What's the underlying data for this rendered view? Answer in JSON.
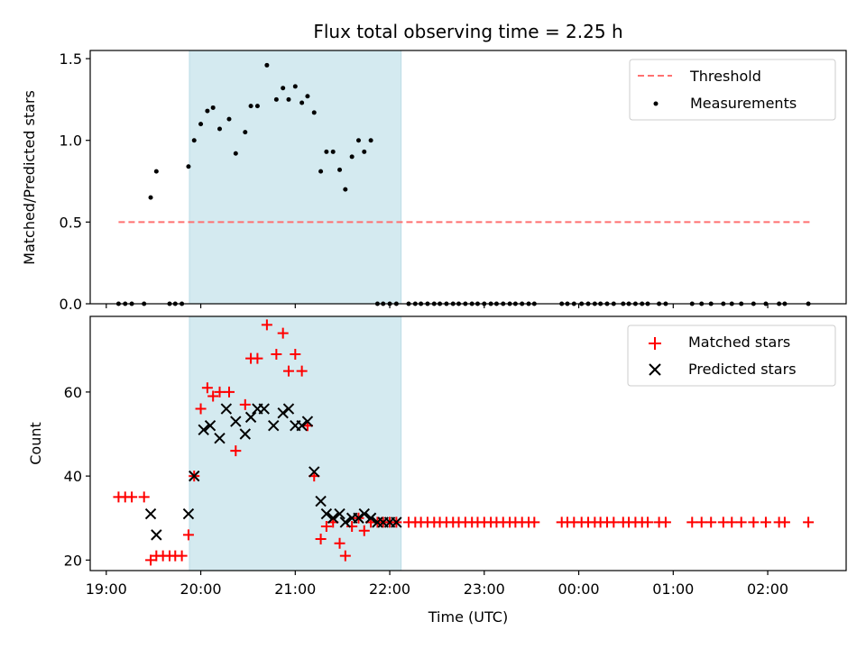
{
  "chart_data": {
    "title": "Flux total observing time = 2.25 h",
    "xlabel": "Time (UTC)",
    "x_unit": "hours UTC (values past 24 are after midnight)",
    "xlim": [
      18.83,
      26.83
    ],
    "xticks": [
      19,
      20,
      21,
      22,
      23,
      24,
      25,
      26
    ],
    "xtick_labels": [
      "19:00",
      "20:00",
      "21:00",
      "22:00",
      "23:00",
      "00:00",
      "01:00",
      "02:00"
    ],
    "highlight_span": [
      19.88,
      22.12
    ],
    "highlight_color": "#d4eaf0",
    "panels": [
      {
        "type": "scatter",
        "ylabel": "Matched/Predicted stars",
        "ylim": [
          0,
          1.55
        ],
        "yticks": [
          0.0,
          0.5,
          1.0,
          1.5
        ],
        "ytick_labels": [
          "0.0",
          "0.5",
          "1.0",
          "1.5"
        ],
        "legend": {
          "position": "upper right",
          "entries": [
            "Threshold",
            "Measurements"
          ]
        },
        "threshold": {
          "name": "Threshold",
          "y": 0.5,
          "x_range": [
            19.13,
            26.47
          ],
          "color": "#ff7070",
          "style": "dashed"
        },
        "measurements": {
          "name": "Measurements",
          "color": "#000000",
          "x": [
            19.13,
            19.2,
            19.27,
            19.4,
            19.47,
            19.53,
            19.67,
            19.73,
            19.8,
            19.87,
            19.93,
            20.0,
            20.07,
            20.13,
            20.2,
            20.3,
            20.37,
            20.47,
            20.53,
            20.6,
            20.7,
            20.8,
            20.87,
            20.93,
            21.0,
            21.07,
            21.13,
            21.2,
            21.27,
            21.33,
            21.4,
            21.47,
            21.53,
            21.6,
            21.67,
            21.73,
            21.8,
            21.87,
            21.93,
            22.0,
            22.07,
            22.2,
            22.27,
            22.33,
            22.4,
            22.47,
            22.53,
            22.6,
            22.67,
            22.73,
            22.8,
            22.87,
            22.93,
            23.0,
            23.07,
            23.13,
            23.2,
            23.27,
            23.33,
            23.4,
            23.47,
            23.53,
            23.82,
            23.88,
            23.95,
            24.03,
            24.1,
            24.17,
            24.23,
            24.3,
            24.37,
            24.47,
            24.53,
            24.6,
            24.67,
            24.73,
            24.85,
            24.92,
            25.2,
            25.3,
            25.4,
            25.53,
            25.62,
            25.72,
            25.85,
            25.98,
            26.12,
            26.18,
            26.43
          ],
          "y": [
            0,
            0,
            0,
            0,
            0.65,
            0.81,
            0,
            0,
            0,
            0.84,
            1.0,
            1.1,
            1.18,
            1.2,
            1.07,
            1.13,
            0.92,
            1.05,
            1.21,
            1.21,
            1.46,
            1.25,
            1.32,
            1.25,
            1.33,
            1.23,
            1.27,
            1.17,
            0.81,
            0.93,
            0.93,
            0.82,
            0.7,
            0.9,
            1.0,
            0.93,
            1.0,
            0,
            0,
            0,
            0,
            0,
            0,
            0,
            0,
            0,
            0,
            0,
            0,
            0,
            0,
            0,
            0,
            0,
            0,
            0,
            0,
            0,
            0,
            0,
            0,
            0,
            0,
            0,
            0,
            0,
            0,
            0,
            0,
            0,
            0,
            0,
            0,
            0,
            0,
            0,
            0,
            0,
            0,
            0,
            0,
            0,
            0,
            0,
            0,
            0,
            0,
            0,
            0
          ]
        }
      },
      {
        "type": "scatter",
        "ylabel": "Count",
        "ylim": [
          17.5,
          78
        ],
        "yticks": [
          20,
          40,
          60
        ],
        "ytick_labels": [
          "20",
          "40",
          "60"
        ],
        "legend": {
          "position": "upper right",
          "entries": [
            "Matched stars",
            "Predicted stars"
          ]
        },
        "series": [
          {
            "name": "Matched stars",
            "marker": "plus",
            "color": "#ff0000",
            "x": [
              19.13,
              19.2,
              19.27,
              19.4,
              19.47,
              19.53,
              19.6,
              19.67,
              19.73,
              19.8,
              19.87,
              19.93,
              20.0,
              20.07,
              20.13,
              20.2,
              20.3,
              20.37,
              20.47,
              20.53,
              20.6,
              20.7,
              20.8,
              20.87,
              20.93,
              21.0,
              21.07,
              21.13,
              21.2,
              21.27,
              21.33,
              21.4,
              21.47,
              21.53,
              21.6,
              21.67,
              21.73,
              21.8,
              21.87,
              21.93,
              22.0,
              22.07,
              22.2,
              22.27,
              22.33,
              22.4,
              22.47,
              22.53,
              22.6,
              22.67,
              22.73,
              22.8,
              22.87,
              22.93,
              23.0,
              23.07,
              23.13,
              23.2,
              23.27,
              23.33,
              23.4,
              23.47,
              23.53,
              23.82,
              23.88,
              23.95,
              24.03,
              24.1,
              24.17,
              24.23,
              24.3,
              24.37,
              24.47,
              24.53,
              24.6,
              24.67,
              24.73,
              24.85,
              24.92,
              25.2,
              25.3,
              25.4,
              25.53,
              25.62,
              25.72,
              25.85,
              25.98,
              26.12,
              26.18,
              26.43
            ],
            "y": [
              35,
              35,
              35,
              35,
              20,
              21,
              21,
              21,
              21,
              21,
              26,
              40,
              56,
              61,
              59,
              60,
              60,
              46,
              57,
              68,
              68,
              76,
              69,
              74,
              65,
              69,
              65,
              52,
              40,
              25,
              28,
              29,
              24,
              21,
              28,
              30,
              27,
              29,
              29,
              29,
              29,
              29,
              29,
              29,
              29,
              29,
              29,
              29,
              29,
              29,
              29,
              29,
              29,
              29,
              29,
              29,
              29,
              29,
              29,
              29,
              29,
              29,
              29,
              29,
              29,
              29,
              29,
              29,
              29,
              29,
              29,
              29,
              29,
              29,
              29,
              29,
              29,
              29,
              29,
              29,
              29,
              29,
              29,
              29,
              29,
              29,
              29,
              29,
              29,
              29
            ]
          },
          {
            "name": "Predicted stars",
            "marker": "x",
            "color": "#000000",
            "x": [
              19.47,
              19.53,
              19.87,
              19.93,
              20.03,
              20.1,
              20.2,
              20.27,
              20.37,
              20.47,
              20.53,
              20.6,
              20.67,
              20.77,
              20.87,
              20.93,
              21.0,
              21.07,
              21.13,
              21.2,
              21.27,
              21.33,
              21.4,
              21.47,
              21.53,
              21.6,
              21.67,
              21.73,
              21.8,
              21.87,
              21.93,
              22.0,
              22.07
            ],
            "y": [
              31,
              26,
              31,
              40,
              51,
              52,
              49,
              56,
              53,
              50,
              54,
              56,
              56,
              52,
              55,
              56,
              52,
              52,
              53,
              41,
              34,
              31,
              30,
              31,
              29,
              30,
              30,
              31,
              30,
              29,
              29,
              29,
              29
            ]
          }
        ]
      }
    ]
  }
}
